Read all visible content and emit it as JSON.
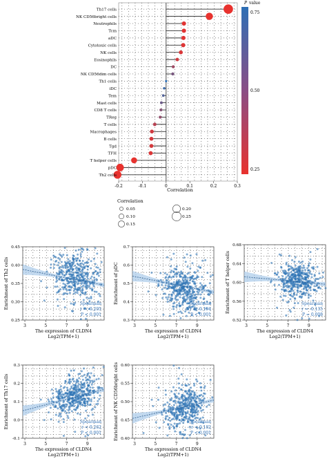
{
  "colors": {
    "pvalue_low": "#e8322e",
    "pvalue_high": "#2e6fb5",
    "scatter_point": "#2f74b5",
    "scatter_band": "#aacbe9",
    "regression_line": "#3d6a99",
    "grid": "#555555"
  },
  "chart_data": [
    {
      "type": "lollipop",
      "xlabel": "Correlation",
      "xlim": [
        -0.2,
        0.3
      ],
      "xticks": [
        "-0.2",
        "-0.1",
        "0",
        "0.1",
        "0.2",
        "0.3"
      ],
      "colorbar": {
        "title": "P value",
        "ticks": [
          "0.75",
          "0.50",
          "0.25"
        ]
      },
      "legend": {
        "title": "Correlation",
        "left": [
          "0.05",
          "0.10",
          "0.15"
        ],
        "right": [
          "0.20",
          "0.25"
        ]
      },
      "categories": [
        "Th17 cells",
        "NK CD56bright cells",
        "Neutrophils",
        "Tcm",
        "aDC",
        "Cytotoxic cells",
        "NK cells",
        "Eosinophils",
        "DC",
        "NK CD56dim cells",
        "Th1 cells",
        "iDC",
        "Tem",
        "Mast cells",
        "CD8 T cells",
        "TReg",
        "T cells",
        "Macrophages",
        "B cells",
        "Tgd",
        "TFH",
        "T helper cells",
        "pDC",
        "Th2 cells"
      ],
      "correlation": [
        0.262,
        0.182,
        0.075,
        0.075,
        0.073,
        0.072,
        0.062,
        0.047,
        0.03,
        0.028,
        0.0,
        -0.008,
        -0.012,
        -0.02,
        -0.022,
        -0.025,
        -0.048,
        -0.06,
        -0.062,
        -0.062,
        -0.065,
        -0.135,
        -0.194,
        -0.205
      ],
      "p_value": [
        0.0,
        0.0,
        0.03,
        0.03,
        0.03,
        0.04,
        0.06,
        0.1,
        0.3,
        0.45,
        0.85,
        0.7,
        0.6,
        0.5,
        0.4,
        0.35,
        0.2,
        0.1,
        0.08,
        0.08,
        0.05,
        0.008,
        0.0,
        0.0
      ]
    },
    {
      "type": "scatter",
      "xlabel": "The expression of CLDN4",
      "xlabel2": "Log2(TPM+1)",
      "ylabel": "Enrichment of Th2 cells",
      "xticks": [
        "3",
        "5",
        "7",
        "9"
      ],
      "yticks": [
        "0.45",
        "0.40",
        "0.35",
        "0.30",
        "0.25"
      ],
      "xlim": [
        2.8,
        10.6
      ],
      "ylim": [
        0.245,
        0.455
      ],
      "stats": [
        "Spearman",
        "r = -0.205",
        "P < 0.001"
      ],
      "trend": {
        "x": [
          2.8,
          10.6
        ],
        "y": [
          0.39,
          0.345
        ]
      },
      "cloud": {
        "cx": 7.8,
        "cy": 0.37,
        "sx": 1.1,
        "sy": 0.03
      }
    },
    {
      "type": "scatter",
      "xlabel": "The expression of CLDN4",
      "xlabel2": "Log2(TPM+1)",
      "ylabel": "Enrichment of pDC",
      "xticks": [
        "3",
        "5",
        "7",
        "9"
      ],
      "yticks": [
        "0.7",
        "0.6",
        "0.5",
        "0.4",
        "0.3"
      ],
      "xlim": [
        2.8,
        10.6
      ],
      "ylim": [
        0.25,
        0.75
      ],
      "stats": [
        "Spearman",
        "r = -0.194",
        "P < 0.001"
      ],
      "trend": {
        "x": [
          2.8,
          10.6
        ],
        "y": [
          0.55,
          0.44
        ]
      },
      "cloud": {
        "cx": 7.8,
        "cy": 0.46,
        "sx": 1.1,
        "sy": 0.07
      }
    },
    {
      "type": "scatter",
      "xlabel": "The expression of CLDN4",
      "xlabel2": "Log2(TPM+1)",
      "ylabel": "Enrichment of T helper cells",
      "xticks": [
        "3",
        "5",
        "7",
        "9"
      ],
      "yticks": [
        "0.68",
        "0.64",
        "0.60",
        "0.56",
        "0.52"
      ],
      "xlim": [
        2.8,
        10.6
      ],
      "ylim": [
        0.52,
        0.68
      ],
      "stats": [
        "Spearman",
        "r = -0.135",
        "P = 0.008"
      ],
      "trend": {
        "x": [
          2.8,
          10.6
        ],
        "y": [
          0.612,
          0.596
        ]
      },
      "cloud": {
        "cx": 7.9,
        "cy": 0.604,
        "sx": 1.0,
        "sy": 0.018
      }
    },
    {
      "type": "scatter",
      "xlabel": "The expression of CLDN4",
      "xlabel2": "Log2(TPM+1)",
      "ylabel": "Enrichment of Th17 cells",
      "xticks": [
        "3",
        "5",
        "7",
        "9"
      ],
      "yticks": [
        "0.3",
        "0.2",
        "0.1",
        "0.0",
        "-0.1"
      ],
      "xlim": [
        2.8,
        10.6
      ],
      "ylim": [
        -0.12,
        0.36
      ],
      "stats": [
        "Spearman",
        "r = 0.262",
        "P < 0.001"
      ],
      "trend": {
        "x": [
          2.8,
          10.6
        ],
        "y": [
          0.06,
          0.2
        ]
      },
      "cloud": {
        "cx": 7.8,
        "cy": 0.16,
        "sx": 1.1,
        "sy": 0.06
      }
    },
    {
      "type": "scatter",
      "xlabel": "The expression of CLDN4",
      "xlabel2": "Log2(TPM+1)",
      "ylabel": "Enrichment of NK CD56bright cells",
      "xticks": [
        "3",
        "5",
        "7",
        "9"
      ],
      "yticks": [
        "0.60",
        "0.55",
        "0.50",
        "0.45",
        "0.40"
      ],
      "xlim": [
        2.8,
        10.6
      ],
      "ylim": [
        0.38,
        0.62
      ],
      "stats": [
        "Spearman",
        "r = 0.182",
        "P < 0.001"
      ],
      "trend": {
        "x": [
          2.8,
          10.6
        ],
        "y": [
          0.445,
          0.505
        ]
      },
      "cloud": {
        "cx": 7.8,
        "cy": 0.48,
        "sx": 1.1,
        "sy": 0.035
      }
    }
  ]
}
